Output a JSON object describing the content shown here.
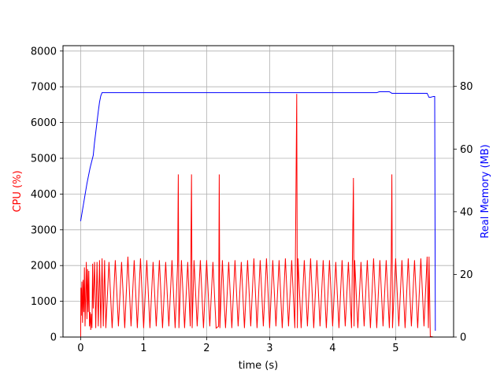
{
  "chart_data": {
    "type": "line",
    "title": "",
    "xlabel": "time (s)",
    "ylabel_left": "CPU (%)",
    "ylabel_right": "Real Memory (MB)",
    "xlim": [
      -0.28,
      5.92
    ],
    "ylim_left": [
      0,
      8150
    ],
    "ylim_right": [
      0,
      93
    ],
    "grid": true,
    "x_ticks": [
      0,
      1,
      2,
      3,
      4,
      5
    ],
    "x_tick_labels": [
      "0",
      "1",
      "2",
      "3",
      "4",
      "5"
    ],
    "y_left_ticks": [
      0,
      1000,
      2000,
      3000,
      4000,
      5000,
      6000,
      7000,
      8000
    ],
    "y_left_tick_labels": [
      "0",
      "1000",
      "2000",
      "3000",
      "4000",
      "5000",
      "6000",
      "7000",
      "8000"
    ],
    "y_right_ticks": [
      0,
      20,
      40,
      60,
      80
    ],
    "y_right_tick_labels": [
      "0",
      "20",
      "40",
      "60",
      "80"
    ],
    "colors": {
      "cpu": "#ff0000",
      "memory": "#0000ff",
      "grid": "#b0b0b0"
    },
    "series": [
      {
        "axis": "left",
        "color": "#ff0000",
        "x": [
          0.0,
          0.005,
          0.01,
          0.02,
          0.03,
          0.04,
          0.05,
          0.06,
          0.07,
          0.08,
          0.09,
          0.1,
          0.11,
          0.12,
          0.13,
          0.14,
          0.15,
          0.16,
          0.17,
          0.18,
          0.19,
          0.2,
          0.22,
          0.24,
          0.26,
          0.28,
          0.3,
          0.32,
          0.34,
          0.36,
          0.38,
          0.4,
          0.45,
          0.5,
          0.55,
          0.6,
          0.65,
          0.7,
          0.75,
          0.8,
          0.85,
          0.9,
          0.95,
          1.0,
          1.05,
          1.1,
          1.15,
          1.2,
          1.25,
          1.3,
          1.35,
          1.4,
          1.45,
          1.5,
          1.54,
          1.55,
          1.56,
          1.6,
          1.65,
          1.7,
          1.74,
          1.76,
          1.77,
          1.8,
          1.85,
          1.9,
          1.95,
          2.0,
          2.05,
          2.1,
          2.15,
          2.19,
          2.2,
          2.21,
          2.25,
          2.28,
          2.3,
          2.35,
          2.4,
          2.45,
          2.5,
          2.55,
          2.6,
          2.65,
          2.7,
          2.75,
          2.8,
          2.85,
          2.9,
          2.95,
          3.0,
          3.05,
          3.1,
          3.15,
          3.2,
          3.25,
          3.3,
          3.35,
          3.4,
          3.42,
          3.43,
          3.44,
          3.45,
          3.5,
          3.55,
          3.6,
          3.65,
          3.7,
          3.75,
          3.8,
          3.85,
          3.9,
          3.95,
          4.0,
          4.05,
          4.1,
          4.15,
          4.2,
          4.25,
          4.3,
          4.33,
          4.34,
          4.35,
          4.4,
          4.45,
          4.5,
          4.55,
          4.6,
          4.65,
          4.7,
          4.75,
          4.8,
          4.85,
          4.9,
          4.93,
          4.94,
          4.95,
          5.0,
          5.05,
          5.1,
          5.15,
          5.2,
          5.25,
          5.3,
          5.35,
          5.4,
          5.45,
          5.5,
          5.52,
          5.53,
          5.55,
          5.6,
          5.62
        ],
        "values": [
          0,
          1380,
          600,
          1550,
          400,
          1600,
          700,
          1950,
          300,
          1200,
          2100,
          500,
          1900,
          700,
          1850,
          300,
          700,
          200,
          650,
          250,
          2050,
          800,
          2100,
          250,
          2100,
          300,
          2150,
          250,
          2200,
          300,
          2150,
          250,
          2100,
          250,
          2150,
          300,
          2100,
          250,
          2250,
          300,
          2150,
          250,
          2200,
          250,
          2150,
          250,
          2100,
          300,
          2150,
          250,
          2100,
          300,
          2150,
          250,
          2100,
          4550,
          250,
          2150,
          250,
          2100,
          300,
          4550,
          250,
          2150,
          300,
          2150,
          250,
          2150,
          300,
          2100,
          250,
          300,
          4550,
          250,
          2150,
          900,
          250,
          2100,
          250,
          2150,
          300,
          2100,
          250,
          2150,
          300,
          2200,
          250,
          2150,
          300,
          2200,
          250,
          2150,
          300,
          2150,
          250,
          2200,
          300,
          2150,
          250,
          4550,
          6800,
          250,
          2200,
          250,
          2150,
          300,
          2200,
          250,
          2150,
          300,
          2150,
          250,
          2150,
          300,
          2100,
          250,
          2150,
          300,
          2100,
          250,
          4450,
          300,
          2150,
          250,
          2100,
          300,
          2150,
          250,
          2200,
          250,
          2150,
          300,
          2150,
          250,
          2100,
          4550,
          250,
          2200,
          300,
          2150,
          250,
          2200,
          300,
          2150,
          250,
          2200,
          300,
          2250,
          250,
          2250,
          20,
          0,
          0
        ]
      },
      {
        "axis": "right",
        "color": "#0000ff",
        "x": [
          0.0,
          0.05,
          0.1,
          0.15,
          0.2,
          0.22,
          0.25,
          0.28,
          0.3,
          0.32,
          0.34,
          0.5,
          1.0,
          2.0,
          3.0,
          4.0,
          4.7,
          4.74,
          4.9,
          4.94,
          5.0,
          5.5,
          5.53,
          5.55,
          5.6,
          5.62,
          5.63
        ],
        "values": [
          37,
          43,
          49,
          54,
          58,
          62,
          67,
          72,
          75,
          77,
          78,
          78,
          78,
          78,
          78,
          78,
          78,
          78.3,
          78.3,
          77.8,
          77.8,
          77.8,
          76.5,
          76.5,
          76.8,
          76.8,
          2
        ]
      }
    ]
  }
}
